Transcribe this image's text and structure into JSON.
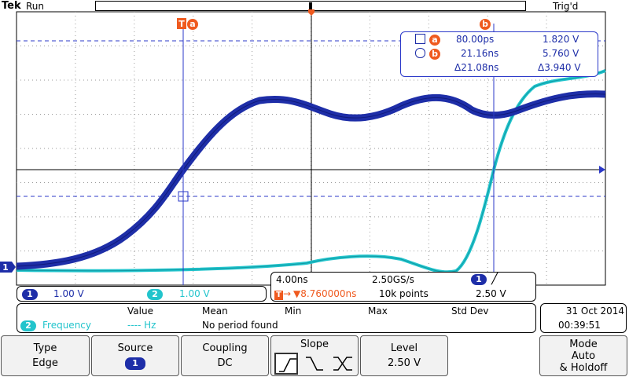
{
  "header": {
    "brand": "Tek",
    "run_state": "Run",
    "trigger_state": "Trig'd"
  },
  "colors": {
    "ch1": "#1e2ea8",
    "ch2": "#22c4cc",
    "cursor": "#2b38c9",
    "accent": "#ef5a1f"
  },
  "cursors": {
    "a_label": "a",
    "b_label": "b",
    "a_time": "80.00ps",
    "a_volt": "1.820 V",
    "b_time": "21.16ns",
    "b_volt": "5.760 V",
    "delta_time": "Δ21.08ns",
    "delta_volt": "Δ3.940 V"
  },
  "channels": {
    "ch1_num": "1",
    "ch1_scale": "1.00 V",
    "ch2_num": "2",
    "ch2_scale": "1.00 V"
  },
  "horizontal": {
    "time_div": "4.00ns",
    "sample_rate": "2.50GS/s",
    "trigger_pos": "▼8.760000ns",
    "record_length": "10k points",
    "trigger_ch": "1",
    "trigger_level": "2.50 V"
  },
  "measurements": {
    "headers": [
      "Value",
      "Mean",
      "Min",
      "Max",
      "Std Dev"
    ],
    "row_ch": "2",
    "row_name": "Frequency",
    "row_value": "---- Hz",
    "row_note": "No period found"
  },
  "datetime": {
    "date": "31 Oct  2014",
    "time": "00:39:51"
  },
  "menu": {
    "type_label": "Type",
    "type_value": "Edge",
    "source_label": "Source",
    "source_value": "1",
    "coupling_label": "Coupling",
    "coupling_value": "DC",
    "slope_label": "Slope",
    "level_label": "Level",
    "level_value": "2.50 V",
    "mode_label": "Mode",
    "mode_value1": "Auto",
    "mode_value2": "& Holdoff"
  },
  "waveforms": {
    "ch1_icon": "ch1-ground-marker",
    "trigger_icon": "trigger-position-marker",
    "trigger_level_icon": "trigger-level-arrow"
  }
}
